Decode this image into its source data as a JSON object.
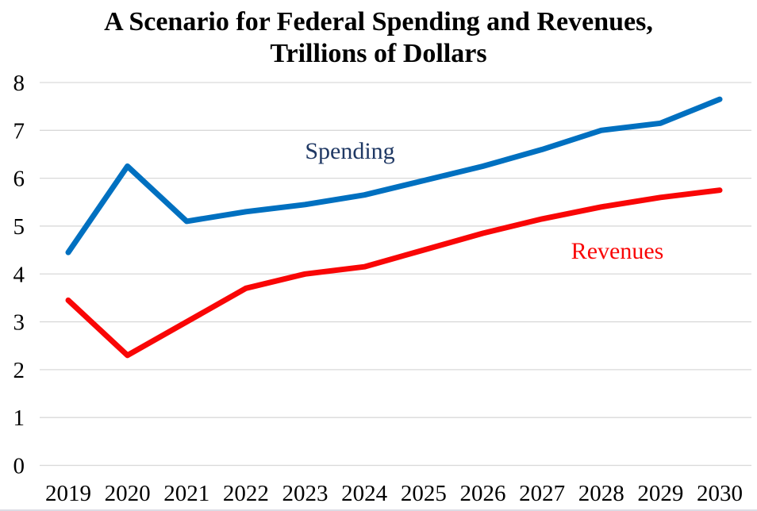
{
  "title": {
    "line1": "A Scenario for Federal Spending and Revenues,",
    "line2": "Trillions of Dollars"
  },
  "chart_data": {
    "type": "line",
    "x": [
      2019,
      2020,
      2021,
      2022,
      2023,
      2024,
      2025,
      2026,
      2027,
      2028,
      2029,
      2030
    ],
    "series": [
      {
        "name": "Spending",
        "color": "#0070C0",
        "label_color": "#1F3864",
        "values": [
          4.45,
          6.25,
          5.1,
          5.3,
          5.45,
          5.65,
          5.95,
          6.25,
          6.6,
          7.0,
          7.15,
          7.65
        ]
      },
      {
        "name": "Revenues",
        "color": "#F90606",
        "label_color": "#F90606",
        "values": [
          3.45,
          2.3,
          3.0,
          3.7,
          4.0,
          4.15,
          4.5,
          4.85,
          5.15,
          5.4,
          5.6,
          5.75
        ]
      }
    ],
    "title": "A Scenario for Federal Spending and Revenues, Trillions of Dollars",
    "xlabel": "",
    "ylabel": "",
    "ylim": [
      0,
      8
    ],
    "ytick_step": 1,
    "yticks": [
      "0",
      "1",
      "2",
      "3",
      "4",
      "5",
      "6",
      "7",
      "8"
    ],
    "grid": true,
    "gridline_color": "#D9D9D9",
    "legend_position": "inline-labels",
    "text_color": "#000000"
  }
}
